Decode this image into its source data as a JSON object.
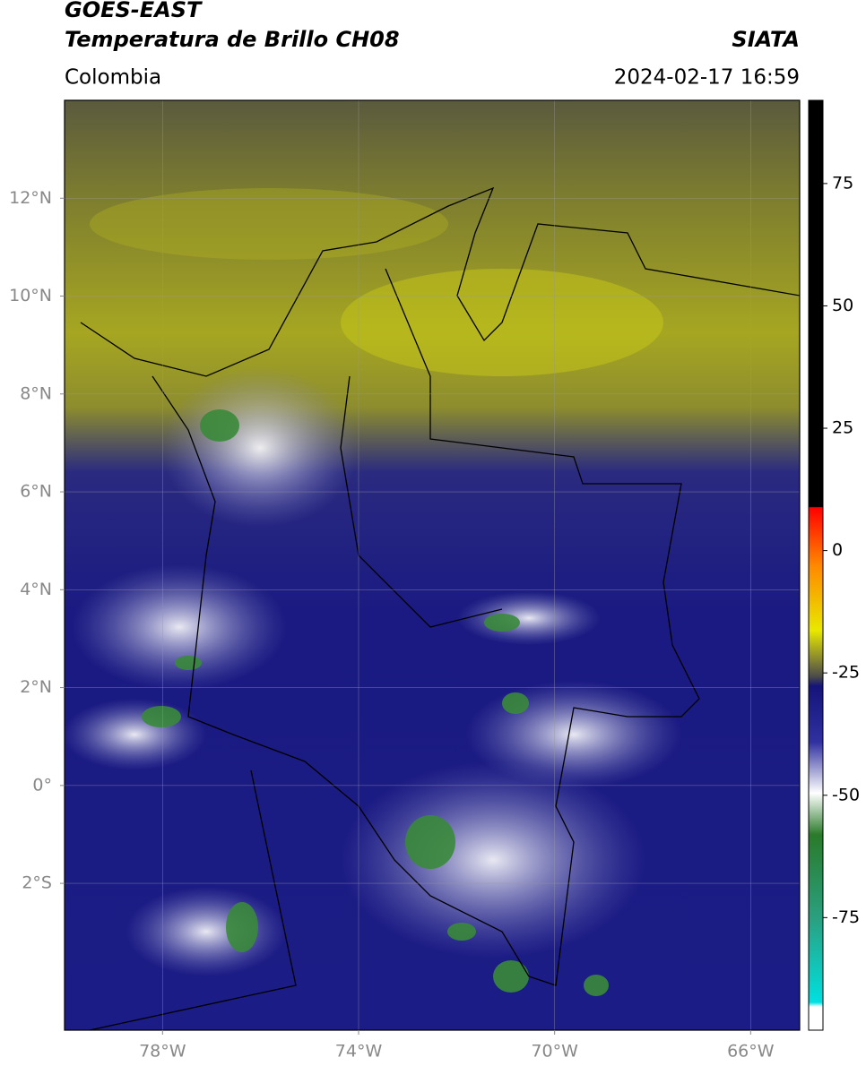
{
  "header": {
    "title_line1": "GOES-EAST",
    "title_line2": "Temperatura de Brillo CH08",
    "source": "SIATA",
    "region": "Colombia",
    "datetime": "2024-02-17 16:59"
  },
  "map": {
    "xlim": [
      -80,
      -65
    ],
    "ylim": [
      -5,
      14
    ],
    "xticks": [
      {
        "value": -78,
        "label": "78°W"
      },
      {
        "value": -74,
        "label": "74°W"
      },
      {
        "value": -70,
        "label": "70°W"
      },
      {
        "value": -66,
        "label": "66°W"
      }
    ],
    "yticks": [
      {
        "value": 12,
        "label": "12°N"
      },
      {
        "value": 10,
        "label": "10°N"
      },
      {
        "value": 8,
        "label": "8°N"
      },
      {
        "value": 6,
        "label": "6°N"
      },
      {
        "value": 4,
        "label": "4°N"
      },
      {
        "value": 2,
        "label": "2°N"
      },
      {
        "value": 0,
        "label": "0°"
      },
      {
        "value": -2,
        "label": "2°S"
      }
    ],
    "grid": true
  },
  "colorbar": {
    "lim": [
      -98,
      92
    ],
    "ticks": [
      75,
      50,
      25,
      0,
      -25,
      -50,
      -75
    ]
  }
}
